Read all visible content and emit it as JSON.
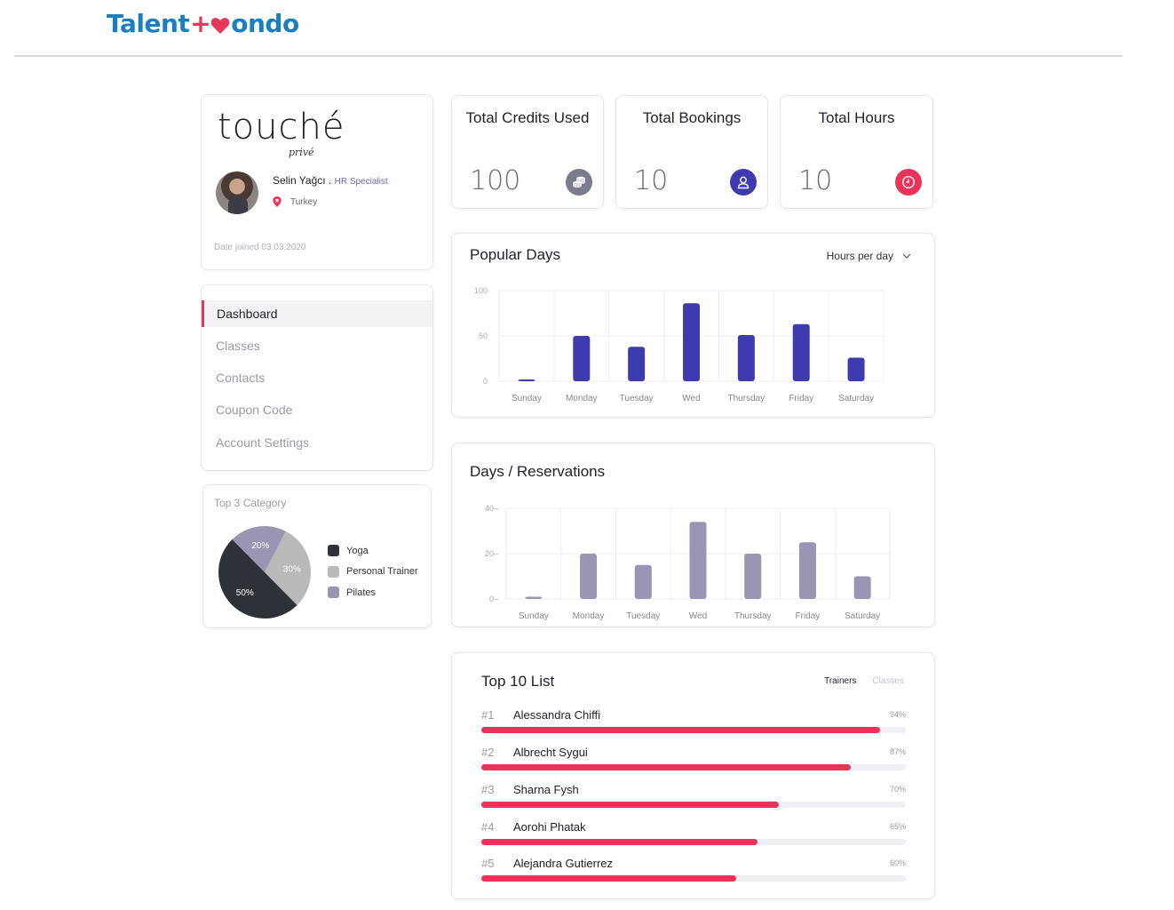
{
  "header": {
    "logo_part1": "Talent",
    "logo_plus": "+",
    "logo_part2": "ondo"
  },
  "profile": {
    "company_name": "touché",
    "company_sub": "privé",
    "user_name": "Selin Yağcı . ",
    "role": "HR Specialist",
    "location": "Turkey",
    "joined": "Date joined 03.03.2020"
  },
  "nav": {
    "items": [
      "Dashboard",
      "Classes",
      "Contacts",
      "Coupon Code",
      "Account Settings"
    ],
    "active_index": 0
  },
  "category": {
    "title": "Top 3 Category"
  },
  "stats": [
    {
      "title": "Total Credits Used",
      "value": "100",
      "icon": "coins-icon",
      "color": "#7b7b8e"
    },
    {
      "title": "Total Bookings",
      "value": "10",
      "icon": "user-icon",
      "color": "#3e3aaf"
    },
    {
      "title": "Total Hours",
      "value": "10",
      "icon": "clock-icon",
      "color": "#ea3358"
    }
  ],
  "popular_days": {
    "title": "Popular Days",
    "dropdown": "Hours per day"
  },
  "reservations": {
    "title": "Days / Reservations"
  },
  "top10": {
    "title": "Top 10 List",
    "tabs": [
      "Trainers",
      "Classes"
    ],
    "active_tab": 0,
    "items": [
      {
        "rank": "#1",
        "name": "Alessandra Chiffi",
        "pct_label": "94%",
        "pct": 94
      },
      {
        "rank": "#2",
        "name": "Albrecht Sygui",
        "pct_label": "87%",
        "pct": 87
      },
      {
        "rank": "#3",
        "name": "Sharna Fysh",
        "pct_label": "70%",
        "pct": 70
      },
      {
        "rank": "#4",
        "name": "Aorohi Phatak",
        "pct_label": "65%",
        "pct": 65
      },
      {
        "rank": "#5",
        "name": "Alejandra Gutierrez",
        "pct_label": "60%",
        "pct": 60
      }
    ]
  },
  "chart_data": [
    {
      "type": "bar",
      "title": "Popular Days",
      "categories": [
        "Sunday",
        "Monday",
        "Tuesday",
        "Wed",
        "Thursday",
        "Friday",
        "Saturday"
      ],
      "values": [
        2,
        50,
        38,
        86,
        51,
        63,
        26
      ],
      "yticks": [
        "0",
        "50",
        "100"
      ],
      "ylim": [
        0,
        100
      ],
      "color": "#3e3aaf",
      "grid": true
    },
    {
      "type": "bar",
      "title": "Days / Reservations",
      "categories": [
        "Sunday",
        "Monday",
        "Tuesday",
        "Wed",
        "Thursday",
        "Friday",
        "Saturday"
      ],
      "values": [
        1,
        20,
        15,
        34,
        20,
        25,
        10
      ],
      "yticks": [
        "0",
        "20",
        "40"
      ],
      "ylim": [
        0,
        40
      ],
      "color": "#9896b3",
      "grid": true
    },
    {
      "type": "pie",
      "title": "Top 3 Category",
      "labels": [
        "Yoga",
        "Personal Trainer",
        "Pilates"
      ],
      "values": [
        50,
        30,
        20
      ],
      "value_labels": [
        "50%",
        "30%",
        "20%"
      ],
      "colors": [
        "#2f3139",
        "#b9b9b9",
        "#9896b3"
      ]
    }
  ]
}
